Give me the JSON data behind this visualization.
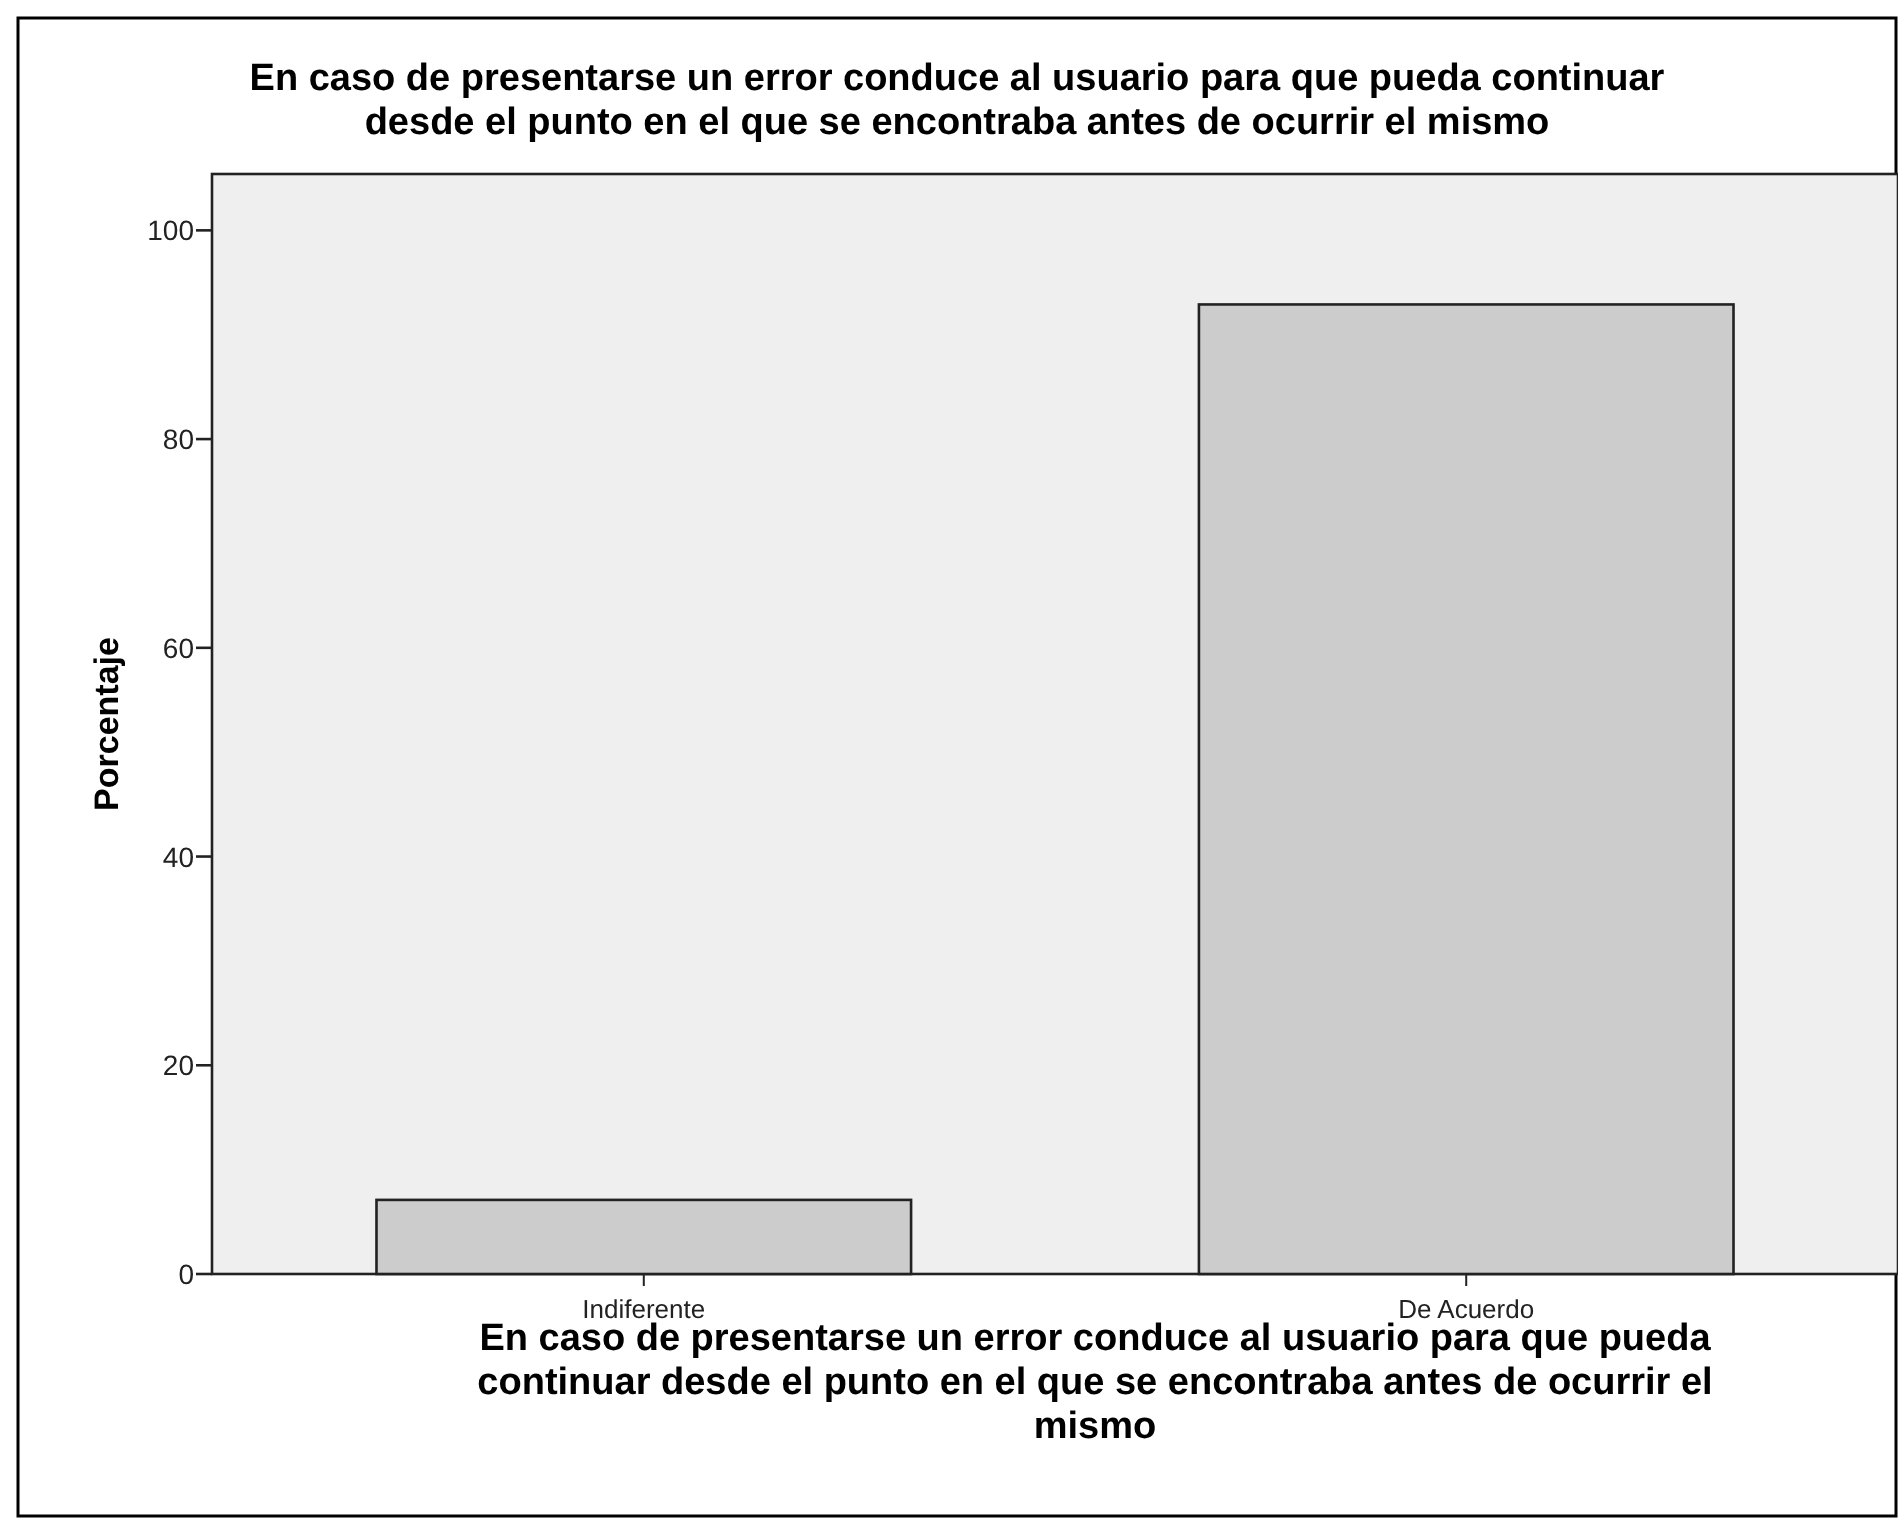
{
  "chart_data": {
    "type": "bar",
    "title": "En caso de presentarse un error conduce al usuario para que pueda continuar desde el punto en el que se encontraba antes de ocurrir el mismo",
    "xlabel": "En caso de presentarse un error conduce al usuario para que pueda continuar desde el punto en el que se encontraba antes de ocurrir el mismo",
    "ylabel": "Porcentaje",
    "categories": [
      "Indiferente",
      "De Acuerdo"
    ],
    "values": [
      7.1,
      92.9
    ],
    "color": "#cccccc",
    "ylim": [
      0,
      105.4
    ],
    "yticks": [
      0,
      20,
      40,
      60,
      80,
      100
    ]
  }
}
